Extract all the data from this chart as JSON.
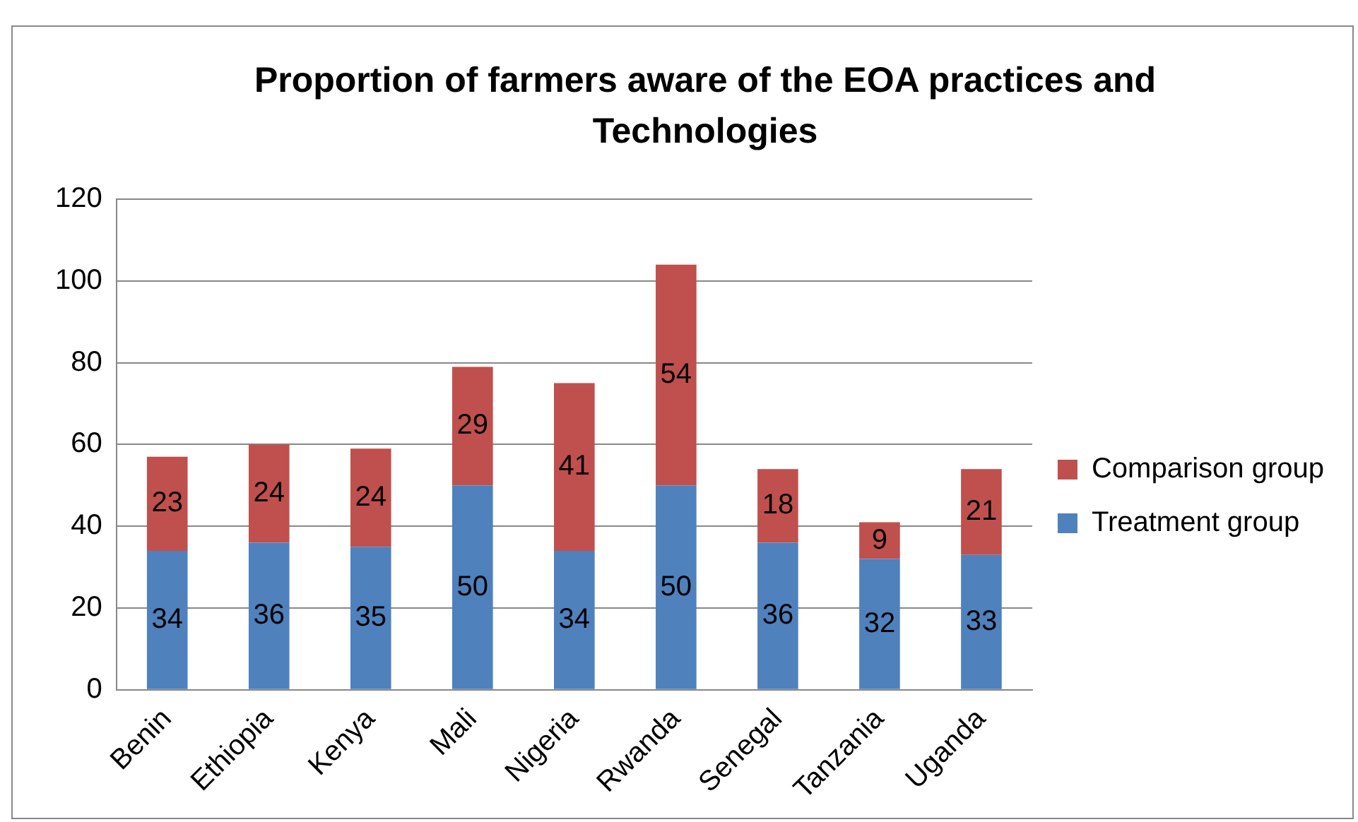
{
  "chart_data": {
    "type": "bar",
    "title": "Proportion of farmers aware of the EOA practices and Technologies",
    "categories": [
      "Benin",
      "Ethiopia",
      "Kenya",
      "Mali",
      "Nigeria",
      "Rwanda",
      "Senegal",
      "Tanzania",
      "Uganda"
    ],
    "stacked": true,
    "series": [
      {
        "name": "Treatment group",
        "color": "#4f81bd",
        "values": [
          34,
          36,
          35,
          50,
          34,
          50,
          36,
          32,
          33
        ]
      },
      {
        "name": "Comparison group",
        "color": "#c0504d",
        "values": [
          23,
          24,
          24,
          29,
          41,
          54,
          18,
          9,
          21
        ]
      }
    ],
    "ylim": [
      0,
      120
    ],
    "yticks": [
      0,
      20,
      40,
      60,
      80,
      100,
      120
    ],
    "grid": "y",
    "legend": "right",
    "data_labels": true
  }
}
